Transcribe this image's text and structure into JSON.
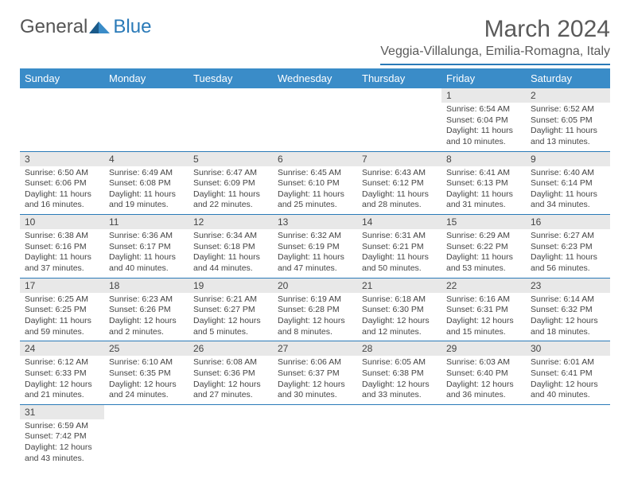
{
  "logo": {
    "word1": "General",
    "word2": "Blue"
  },
  "title": "March 2024",
  "location": "Veggia-Villalunga, Emilia-Romagna, Italy",
  "colors": {
    "header_bg": "#3a8cc8",
    "header_text": "#ffffff",
    "border": "#2a7ab8",
    "daynum_bg": "#e8e8e8",
    "text": "#444444",
    "title_text": "#5a5a5a"
  },
  "weekdays": [
    "Sunday",
    "Monday",
    "Tuesday",
    "Wednesday",
    "Thursday",
    "Friday",
    "Saturday"
  ],
  "cells": [
    {
      "day": "",
      "sunrise": "",
      "sunset": "",
      "daylight": ""
    },
    {
      "day": "",
      "sunrise": "",
      "sunset": "",
      "daylight": ""
    },
    {
      "day": "",
      "sunrise": "",
      "sunset": "",
      "daylight": ""
    },
    {
      "day": "",
      "sunrise": "",
      "sunset": "",
      "daylight": ""
    },
    {
      "day": "",
      "sunrise": "",
      "sunset": "",
      "daylight": ""
    },
    {
      "day": "1",
      "sunrise": "Sunrise: 6:54 AM",
      "sunset": "Sunset: 6:04 PM",
      "daylight": "Daylight: 11 hours and 10 minutes."
    },
    {
      "day": "2",
      "sunrise": "Sunrise: 6:52 AM",
      "sunset": "Sunset: 6:05 PM",
      "daylight": "Daylight: 11 hours and 13 minutes."
    },
    {
      "day": "3",
      "sunrise": "Sunrise: 6:50 AM",
      "sunset": "Sunset: 6:06 PM",
      "daylight": "Daylight: 11 hours and 16 minutes."
    },
    {
      "day": "4",
      "sunrise": "Sunrise: 6:49 AM",
      "sunset": "Sunset: 6:08 PM",
      "daylight": "Daylight: 11 hours and 19 minutes."
    },
    {
      "day": "5",
      "sunrise": "Sunrise: 6:47 AM",
      "sunset": "Sunset: 6:09 PM",
      "daylight": "Daylight: 11 hours and 22 minutes."
    },
    {
      "day": "6",
      "sunrise": "Sunrise: 6:45 AM",
      "sunset": "Sunset: 6:10 PM",
      "daylight": "Daylight: 11 hours and 25 minutes."
    },
    {
      "day": "7",
      "sunrise": "Sunrise: 6:43 AM",
      "sunset": "Sunset: 6:12 PM",
      "daylight": "Daylight: 11 hours and 28 minutes."
    },
    {
      "day": "8",
      "sunrise": "Sunrise: 6:41 AM",
      "sunset": "Sunset: 6:13 PM",
      "daylight": "Daylight: 11 hours and 31 minutes."
    },
    {
      "day": "9",
      "sunrise": "Sunrise: 6:40 AM",
      "sunset": "Sunset: 6:14 PM",
      "daylight": "Daylight: 11 hours and 34 minutes."
    },
    {
      "day": "10",
      "sunrise": "Sunrise: 6:38 AM",
      "sunset": "Sunset: 6:16 PM",
      "daylight": "Daylight: 11 hours and 37 minutes."
    },
    {
      "day": "11",
      "sunrise": "Sunrise: 6:36 AM",
      "sunset": "Sunset: 6:17 PM",
      "daylight": "Daylight: 11 hours and 40 minutes."
    },
    {
      "day": "12",
      "sunrise": "Sunrise: 6:34 AM",
      "sunset": "Sunset: 6:18 PM",
      "daylight": "Daylight: 11 hours and 44 minutes."
    },
    {
      "day": "13",
      "sunrise": "Sunrise: 6:32 AM",
      "sunset": "Sunset: 6:19 PM",
      "daylight": "Daylight: 11 hours and 47 minutes."
    },
    {
      "day": "14",
      "sunrise": "Sunrise: 6:31 AM",
      "sunset": "Sunset: 6:21 PM",
      "daylight": "Daylight: 11 hours and 50 minutes."
    },
    {
      "day": "15",
      "sunrise": "Sunrise: 6:29 AM",
      "sunset": "Sunset: 6:22 PM",
      "daylight": "Daylight: 11 hours and 53 minutes."
    },
    {
      "day": "16",
      "sunrise": "Sunrise: 6:27 AM",
      "sunset": "Sunset: 6:23 PM",
      "daylight": "Daylight: 11 hours and 56 minutes."
    },
    {
      "day": "17",
      "sunrise": "Sunrise: 6:25 AM",
      "sunset": "Sunset: 6:25 PM",
      "daylight": "Daylight: 11 hours and 59 minutes."
    },
    {
      "day": "18",
      "sunrise": "Sunrise: 6:23 AM",
      "sunset": "Sunset: 6:26 PM",
      "daylight": "Daylight: 12 hours and 2 minutes."
    },
    {
      "day": "19",
      "sunrise": "Sunrise: 6:21 AM",
      "sunset": "Sunset: 6:27 PM",
      "daylight": "Daylight: 12 hours and 5 minutes."
    },
    {
      "day": "20",
      "sunrise": "Sunrise: 6:19 AM",
      "sunset": "Sunset: 6:28 PM",
      "daylight": "Daylight: 12 hours and 8 minutes."
    },
    {
      "day": "21",
      "sunrise": "Sunrise: 6:18 AM",
      "sunset": "Sunset: 6:30 PM",
      "daylight": "Daylight: 12 hours and 12 minutes."
    },
    {
      "day": "22",
      "sunrise": "Sunrise: 6:16 AM",
      "sunset": "Sunset: 6:31 PM",
      "daylight": "Daylight: 12 hours and 15 minutes."
    },
    {
      "day": "23",
      "sunrise": "Sunrise: 6:14 AM",
      "sunset": "Sunset: 6:32 PM",
      "daylight": "Daylight: 12 hours and 18 minutes."
    },
    {
      "day": "24",
      "sunrise": "Sunrise: 6:12 AM",
      "sunset": "Sunset: 6:33 PM",
      "daylight": "Daylight: 12 hours and 21 minutes."
    },
    {
      "day": "25",
      "sunrise": "Sunrise: 6:10 AM",
      "sunset": "Sunset: 6:35 PM",
      "daylight": "Daylight: 12 hours and 24 minutes."
    },
    {
      "day": "26",
      "sunrise": "Sunrise: 6:08 AM",
      "sunset": "Sunset: 6:36 PM",
      "daylight": "Daylight: 12 hours and 27 minutes."
    },
    {
      "day": "27",
      "sunrise": "Sunrise: 6:06 AM",
      "sunset": "Sunset: 6:37 PM",
      "daylight": "Daylight: 12 hours and 30 minutes."
    },
    {
      "day": "28",
      "sunrise": "Sunrise: 6:05 AM",
      "sunset": "Sunset: 6:38 PM",
      "daylight": "Daylight: 12 hours and 33 minutes."
    },
    {
      "day": "29",
      "sunrise": "Sunrise: 6:03 AM",
      "sunset": "Sunset: 6:40 PM",
      "daylight": "Daylight: 12 hours and 36 minutes."
    },
    {
      "day": "30",
      "sunrise": "Sunrise: 6:01 AM",
      "sunset": "Sunset: 6:41 PM",
      "daylight": "Daylight: 12 hours and 40 minutes."
    },
    {
      "day": "31",
      "sunrise": "Sunrise: 6:59 AM",
      "sunset": "Sunset: 7:42 PM",
      "daylight": "Daylight: 12 hours and 43 minutes."
    },
    {
      "day": "",
      "sunrise": "",
      "sunset": "",
      "daylight": ""
    },
    {
      "day": "",
      "sunrise": "",
      "sunset": "",
      "daylight": ""
    },
    {
      "day": "",
      "sunrise": "",
      "sunset": "",
      "daylight": ""
    },
    {
      "day": "",
      "sunrise": "",
      "sunset": "",
      "daylight": ""
    },
    {
      "day": "",
      "sunrise": "",
      "sunset": "",
      "daylight": ""
    },
    {
      "day": "",
      "sunrise": "",
      "sunset": "",
      "daylight": ""
    }
  ]
}
